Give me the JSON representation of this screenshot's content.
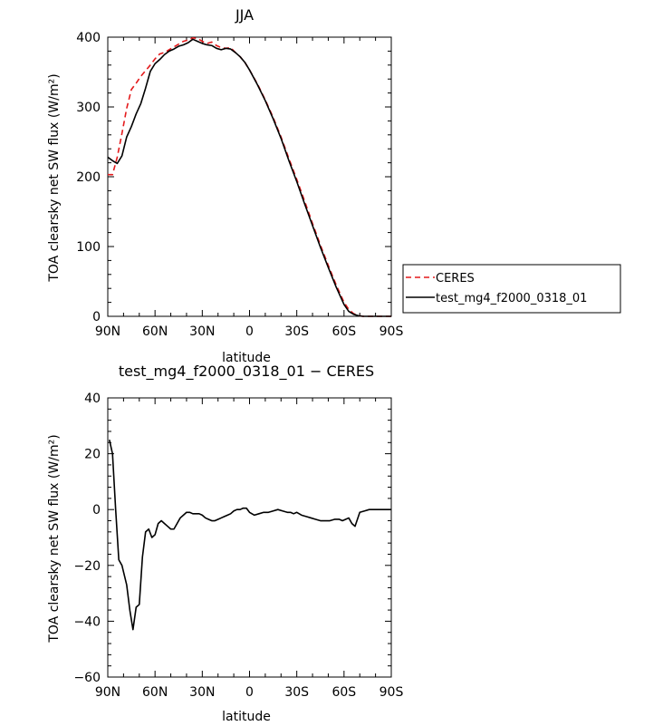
{
  "chart_data": [
    {
      "type": "line",
      "title": "JJA",
      "xlabel": "latitude",
      "ylabel": "TOA clearsky net SW flux (W/m²)",
      "xlim": [
        90,
        -90
      ],
      "ylim": [
        0,
        400
      ],
      "xticks": [
        90,
        60,
        30,
        0,
        -30,
        -60,
        -90
      ],
      "xtick_labels": [
        "90N",
        "60N",
        "30N",
        "0",
        "30S",
        "60S",
        "90S"
      ],
      "yticks": [
        0,
        100,
        200,
        300,
        400
      ],
      "ytick_labels": [
        "0",
        "100",
        "200",
        "300",
        "400"
      ],
      "legend_position": "right",
      "series": [
        {
          "name": "CERES",
          "color": "#e41a1c",
          "dash": "dashed",
          "x": [
            90,
            87,
            84,
            81,
            78,
            75,
            72,
            69,
            66,
            63,
            60,
            57,
            54,
            51,
            48,
            45,
            42,
            39,
            36,
            33,
            30,
            27,
            24,
            21,
            18,
            15,
            12,
            9,
            6,
            3,
            0,
            -5,
            -10,
            -15,
            -20,
            -25,
            -30,
            -35,
            -40,
            -45,
            -50,
            -55,
            -60,
            -63,
            -66,
            -69,
            -72,
            -75,
            -78,
            -81,
            -84,
            -87,
            -90
          ],
          "y": [
            203,
            203,
            228,
            262,
            298,
            325,
            334,
            344,
            352,
            360,
            369,
            376,
            378,
            382,
            386,
            390,
            394,
            396,
            399,
            398,
            394,
            391,
            393,
            388,
            385,
            384,
            385,
            378,
            372,
            364,
            353,
            333,
            310,
            285,
            257,
            226,
            196,
            165,
            133,
            102,
            73,
            45,
            20,
            10,
            4,
            1,
            0,
            0,
            0,
            0,
            0,
            0,
            0
          ]
        },
        {
          "name": "test_mg4_f2000_0318_01",
          "color": "#000000",
          "dash": "solid",
          "x": [
            90,
            87,
            84,
            81,
            78,
            75,
            72,
            69,
            66,
            63,
            60,
            57,
            54,
            51,
            48,
            45,
            42,
            39,
            36,
            33,
            30,
            27,
            24,
            21,
            18,
            15,
            12,
            9,
            6,
            3,
            0,
            -5,
            -10,
            -15,
            -20,
            -25,
            -30,
            -35,
            -40,
            -45,
            -50,
            -55,
            -60,
            -63,
            -66,
            -69,
            -72,
            -75,
            -78,
            -81,
            -84,
            -87,
            -90
          ],
          "y": [
            228,
            223,
            219,
            230,
            257,
            272,
            290,
            305,
            327,
            351,
            362,
            368,
            375,
            380,
            383,
            387,
            389,
            392,
            397,
            394,
            391,
            389,
            388,
            384,
            382,
            384,
            383,
            378,
            372,
            364,
            353,
            332,
            309,
            283,
            255,
            223,
            193,
            161,
            130,
            99,
            70,
            42,
            17,
            7,
            3,
            1,
            0,
            0,
            0,
            0,
            0,
            0,
            0
          ]
        }
      ]
    },
    {
      "type": "line",
      "title": "test_mg4_f2000_0318_01 − CERES",
      "xlabel": "latitude",
      "ylabel": "TOA clearsky net SW flux (W/m²)",
      "xlim": [
        90,
        -90
      ],
      "ylim": [
        -60,
        40
      ],
      "xticks": [
        90,
        60,
        30,
        0,
        -30,
        -60,
        -90
      ],
      "xtick_labels": [
        "90N",
        "60N",
        "30N",
        "0",
        "30S",
        "60S",
        "90S"
      ],
      "yticks": [
        -60,
        -40,
        -20,
        0,
        20,
        40
      ],
      "ytick_labels": [
        "−60",
        "−40",
        "−20",
        "0",
        "20",
        "40"
      ],
      "series": [
        {
          "color": "#000000",
          "dash": "solid",
          "x": [
            89,
            87,
            85,
            83,
            81,
            78,
            76,
            74,
            72,
            70,
            68,
            66,
            64,
            62,
            60,
            58,
            56,
            54,
            52,
            50,
            48,
            46,
            44,
            42,
            40,
            38,
            36,
            34,
            32,
            30,
            28,
            26,
            24,
            22,
            20,
            18,
            16,
            14,
            12,
            10,
            8,
            6,
            4,
            2,
            0,
            -3,
            -6,
            -9,
            -12,
            -15,
            -18,
            -21,
            -24,
            -26,
            -28,
            -30,
            -33,
            -36,
            -39,
            -42,
            -45,
            -48,
            -51,
            -54,
            -57,
            -59,
            -61,
            -63,
            -65,
            -67,
            -70,
            -73,
            -76,
            -80,
            -85,
            -90
          ],
          "y": [
            25,
            20,
            0,
            -18,
            -20,
            -27,
            -36,
            -43,
            -35,
            -34,
            -17,
            -8,
            -7,
            -10,
            -9,
            -5,
            -4,
            -5,
            -6,
            -7,
            -7,
            -5,
            -3,
            -2,
            -1,
            -1,
            -1.5,
            -1.5,
            -1.5,
            -2,
            -3,
            -3.5,
            -4,
            -4,
            -3.5,
            -3,
            -2.5,
            -2,
            -1.5,
            -0.5,
            0,
            0,
            0.5,
            0.5,
            -1,
            -2,
            -1.5,
            -1,
            -1,
            -0.5,
            0,
            -0.5,
            -1,
            -1,
            -1.5,
            -1,
            -2,
            -2.5,
            -3,
            -3.5,
            -4,
            -4,
            -4,
            -3.5,
            -3.5,
            -4,
            -3.5,
            -3,
            -5,
            -6,
            -1,
            -0.5,
            0,
            0,
            0,
            0
          ]
        }
      ]
    }
  ]
}
